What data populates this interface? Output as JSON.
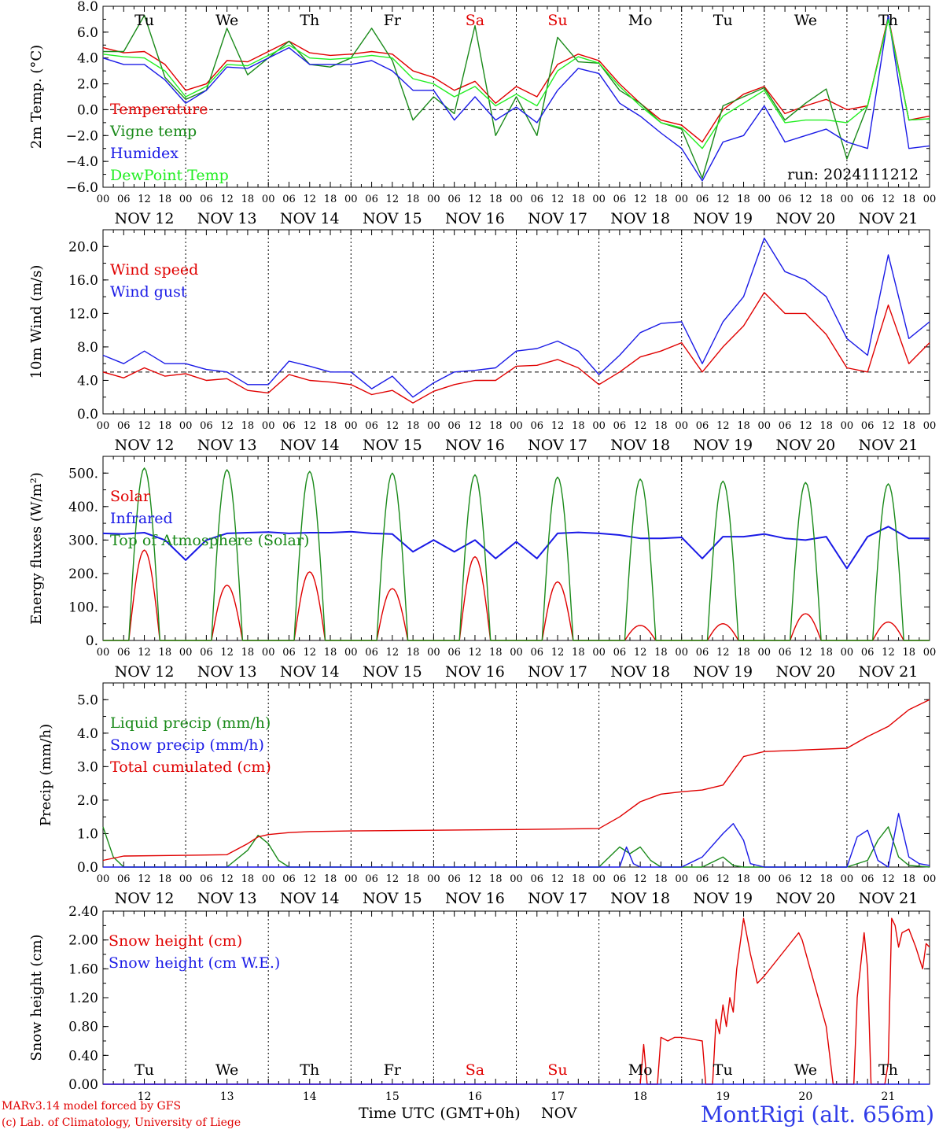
{
  "colors": {
    "red": "#e00000",
    "dark_green": "#1a8a1a",
    "blue": "#1a1ae6",
    "light_green": "#22ee22",
    "grid": "#000000",
    "station": "#2f3be8"
  },
  "days": [
    "NOV 12",
    "NOV 13",
    "NOV 14",
    "NOV 15",
    "NOV 16",
    "NOV 17",
    "NOV 18",
    "NOV 19",
    "NOV 20",
    "NOV 21"
  ],
  "weekdays": [
    "Tu",
    "We",
    "Th",
    "Fr",
    "Sa",
    "Su",
    "Mo",
    "Tu",
    "We",
    "Th"
  ],
  "weekend_color_indices": [
    4,
    5
  ],
  "hour_ticks": [
    "00",
    "06",
    "12",
    "18"
  ],
  "bottom_day_numbers": [
    "12",
    "13",
    "14",
    "15",
    "16",
    "17",
    "18",
    "19",
    "20",
    "21"
  ],
  "footer": {
    "model": "MARv3.14 model forced by GFS",
    "copyright": "(c) Lab. of Climatology, University of Liege",
    "xaxis_label": "Time UTC (GMT+0h)",
    "month": "NOV",
    "station": "MontRigi (alt. 656m)"
  },
  "chart_data": [
    {
      "type": "line",
      "title": "",
      "ylabel": "2m Temp. (°C)",
      "ylim": [
        -6,
        8
      ],
      "yticks": [
        "−6.0",
        "−4.0",
        "−2.0",
        "0.0",
        "2.0",
        "4.0",
        "6.0",
        "8.0"
      ],
      "reference_line": 0,
      "annotation": "run: 2024111212",
      "x_unit": "hours since NOV 12 00 UTC",
      "series": [
        {
          "name": "Temperature",
          "color": "#e00000",
          "x": [
            0,
            6,
            12,
            18,
            24,
            30,
            36,
            42,
            48,
            54,
            60,
            66,
            72,
            78,
            84,
            90,
            96,
            102,
            108,
            114,
            120,
            126,
            132,
            138,
            144,
            150,
            156,
            162,
            168,
            174,
            180,
            186,
            192,
            198,
            204,
            210,
            216,
            222,
            228,
            234,
            240
          ],
          "y": [
            4.8,
            4.4,
            4.5,
            3.5,
            1.5,
            2.0,
            3.8,
            3.7,
            4.5,
            5.3,
            4.4,
            4.2,
            4.3,
            4.5,
            4.3,
            3.0,
            2.5,
            1.5,
            2.2,
            0.5,
            1.8,
            1.0,
            3.5,
            4.3,
            3.8,
            2.0,
            0.5,
            -0.8,
            -1.2,
            -2.5,
            0.0,
            1.2,
            1.8,
            -0.3,
            0.3,
            0.8,
            0.0,
            0.3,
            7.2,
            -0.8,
            -0.5
          ]
        },
        {
          "name": "Vigne temp",
          "color": "#1a8a1a",
          "x": [
            0,
            6,
            12,
            18,
            24,
            30,
            36,
            42,
            48,
            54,
            60,
            66,
            72,
            78,
            84,
            90,
            96,
            102,
            108,
            114,
            120,
            126,
            132,
            138,
            144,
            150,
            156,
            162,
            168,
            174,
            180,
            186,
            192,
            198,
            204,
            210,
            216,
            222,
            228,
            234,
            240
          ],
          "y": [
            4.5,
            4.5,
            7.3,
            2.5,
            0.8,
            1.5,
            6.3,
            2.7,
            4.0,
            5.3,
            3.5,
            3.3,
            4.0,
            6.3,
            3.8,
            -0.8,
            1.0,
            -0.3,
            6.5,
            -2.0,
            1.0,
            -2.0,
            5.6,
            3.7,
            3.6,
            1.5,
            0.5,
            -1.0,
            -1.5,
            -5.3,
            0.3,
            1.0,
            1.7,
            -0.8,
            0.5,
            1.6,
            -3.8,
            0.3,
            7.0,
            -0.8,
            -0.7
          ]
        },
        {
          "name": "Humidex",
          "color": "#1a1ae6",
          "x": [
            0,
            6,
            12,
            18,
            24,
            30,
            36,
            42,
            48,
            54,
            60,
            66,
            72,
            78,
            84,
            90,
            96,
            102,
            108,
            114,
            120,
            126,
            132,
            138,
            144,
            150,
            156,
            162,
            168,
            174,
            180,
            186,
            192,
            198,
            204,
            210,
            216,
            222,
            228,
            234,
            240
          ],
          "y": [
            4.0,
            3.5,
            3.5,
            2.3,
            0.5,
            1.5,
            3.3,
            3.2,
            4.0,
            4.8,
            3.5,
            3.5,
            3.5,
            3.8,
            3.0,
            1.5,
            1.5,
            -0.8,
            1.0,
            -0.8,
            0.2,
            -1.0,
            1.5,
            3.2,
            2.8,
            0.5,
            -0.5,
            -1.8,
            -3.0,
            -5.5,
            -2.5,
            -2.0,
            0.3,
            -2.5,
            -2.0,
            -1.5,
            -2.5,
            -3.0,
            7.3,
            -3.0,
            -2.8
          ]
        },
        {
          "name": "DewPoint Temp",
          "color": "#22ee22",
          "x": [
            0,
            6,
            12,
            18,
            24,
            30,
            36,
            42,
            48,
            54,
            60,
            66,
            72,
            78,
            84,
            90,
            96,
            102,
            108,
            114,
            120,
            126,
            132,
            138,
            144,
            150,
            156,
            162,
            168,
            174,
            180,
            186,
            192,
            198,
            204,
            210,
            216,
            222,
            228,
            234,
            240
          ],
          "y": [
            4.3,
            4.1,
            4.0,
            3.0,
            1.0,
            1.8,
            3.5,
            3.4,
            4.2,
            5.0,
            4.0,
            3.9,
            4.0,
            4.2,
            4.0,
            2.4,
            2.0,
            1.0,
            1.8,
            0.3,
            1.2,
            0.3,
            3.0,
            4.1,
            3.6,
            1.8,
            0.3,
            -1.0,
            -1.4,
            -3.0,
            -0.5,
            0.5,
            1.5,
            -1.0,
            -0.8,
            -0.8,
            -1.0,
            0.3,
            7.0,
            -0.8,
            -0.7
          ]
        }
      ]
    },
    {
      "type": "line",
      "title": "",
      "ylabel": "10m Wind (m/s)",
      "ylim": [
        0,
        22
      ],
      "yticks": [
        "0.0",
        "4.0",
        "8.0",
        "12.0",
        "16.0",
        "20.0"
      ],
      "reference_line": 5,
      "series": [
        {
          "name": "Wind speed",
          "color": "#e00000",
          "x": [
            0,
            6,
            12,
            18,
            24,
            30,
            36,
            42,
            48,
            54,
            60,
            66,
            72,
            78,
            84,
            90,
            96,
            102,
            108,
            114,
            120,
            126,
            132,
            138,
            144,
            150,
            156,
            162,
            168,
            174,
            180,
            186,
            192,
            198,
            204,
            210,
            216,
            222,
            228,
            234,
            240
          ],
          "y": [
            5.0,
            4.3,
            5.5,
            4.5,
            4.8,
            4.0,
            4.2,
            2.8,
            2.5,
            4.7,
            4.0,
            3.8,
            3.5,
            2.3,
            2.8,
            1.3,
            2.7,
            3.5,
            4.0,
            4.0,
            5.7,
            5.8,
            6.5,
            5.5,
            3.5,
            5.0,
            6.8,
            7.5,
            8.5,
            5.0,
            8.0,
            10.5,
            14.5,
            12.0,
            12.0,
            9.5,
            5.5,
            5.0,
            13.0,
            6.0,
            8.5
          ]
        },
        {
          "name": "Wind gust",
          "color": "#1a1ae6",
          "x": [
            0,
            6,
            12,
            18,
            24,
            30,
            36,
            42,
            48,
            54,
            60,
            66,
            72,
            78,
            84,
            90,
            96,
            102,
            108,
            114,
            120,
            126,
            132,
            138,
            144,
            150,
            156,
            162,
            168,
            174,
            180,
            186,
            192,
            198,
            204,
            210,
            216,
            222,
            228,
            234,
            240
          ],
          "y": [
            7.0,
            6.0,
            7.5,
            6.0,
            6.0,
            5.3,
            5.0,
            3.5,
            3.5,
            6.3,
            5.7,
            5.0,
            5.0,
            3.0,
            4.5,
            2.0,
            3.7,
            5.0,
            5.2,
            5.5,
            7.5,
            7.8,
            8.7,
            7.5,
            4.7,
            7.0,
            9.7,
            10.8,
            11.0,
            6.0,
            11.0,
            14.0,
            21.0,
            17.0,
            16.0,
            14.0,
            9.0,
            7.0,
            19.0,
            9.0,
            11.0
          ]
        }
      ]
    },
    {
      "type": "line",
      "title": "",
      "ylabel": "Energy fluxes (W/m²)",
      "ylim": [
        0,
        550
      ],
      "yticks": [
        "0.",
        "100.",
        "200.",
        "300.",
        "400.",
        "500."
      ],
      "series": [
        {
          "name": "Solar",
          "color": "#e00000",
          "kind": "daily_peaks",
          "peak_hour": 12,
          "half_width_h": 4.5,
          "daily_peaks": [
            270,
            165,
            205,
            155,
            250,
            175,
            45,
            50,
            80,
            55
          ]
        },
        {
          "name": "Infrared",
          "color": "#1a1ae6",
          "x": [
            0,
            6,
            12,
            18,
            24,
            30,
            36,
            42,
            48,
            54,
            60,
            66,
            72,
            78,
            84,
            90,
            96,
            102,
            108,
            114,
            120,
            126,
            132,
            138,
            144,
            150,
            156,
            162,
            168,
            174,
            180,
            186,
            192,
            198,
            204,
            210,
            216,
            222,
            228,
            234,
            240
          ],
          "y": [
            320,
            318,
            322,
            300,
            240,
            300,
            320,
            322,
            324,
            320,
            322,
            322,
            325,
            320,
            318,
            265,
            300,
            265,
            300,
            245,
            295,
            245,
            320,
            323,
            320,
            315,
            305,
            305,
            308,
            245,
            310,
            310,
            318,
            305,
            300,
            310,
            215,
            310,
            340,
            305,
            305
          ]
        },
        {
          "name": "Top of Atmosphere (Solar)",
          "color": "#1a8a1a",
          "kind": "daily_peaks",
          "peak_hour": 12,
          "half_width_h": 4.5,
          "daily_peaks": [
            515,
            510,
            505,
            500,
            495,
            488,
            482,
            476,
            472,
            468
          ]
        }
      ]
    },
    {
      "type": "line",
      "title": "",
      "ylabel": "Precip (mm/h)",
      "ylim": [
        0,
        5.5
      ],
      "yticks": [
        "0.0",
        "1.0",
        "2.0",
        "3.0",
        "4.0",
        "5.0"
      ],
      "series": [
        {
          "name": "Liquid precip (mm/h)",
          "color": "#1a8a1a",
          "x": [
            0,
            3,
            6,
            12,
            24,
            36,
            42,
            45,
            48,
            51,
            54,
            60,
            96,
            144,
            150,
            153,
            156,
            159,
            162,
            168,
            174,
            180,
            183,
            186,
            192,
            204,
            216,
            222,
            225,
            228,
            231,
            234,
            240
          ],
          "y": [
            1.2,
            0.3,
            0.0,
            0.0,
            0.0,
            0.0,
            0.5,
            0.95,
            0.7,
            0.2,
            0.0,
            0.0,
            0.0,
            0.0,
            0.6,
            0.4,
            0.6,
            0.2,
            0.0,
            0.0,
            0.0,
            0.3,
            0.05,
            0.0,
            0.0,
            0.0,
            0.0,
            0.2,
            0.8,
            1.2,
            0.3,
            0.05,
            0.0
          ]
        },
        {
          "name": "Snow precip (mm/h)",
          "color": "#1a1ae6",
          "x": [
            0,
            24,
            36,
            48,
            96,
            144,
            150,
            152,
            154,
            156,
            162,
            168,
            174,
            180,
            183,
            186,
            188,
            192,
            204,
            216,
            219,
            222,
            225,
            228,
            231,
            234,
            237,
            240
          ],
          "y": [
            0.0,
            0.0,
            0.0,
            0.0,
            0.0,
            0.0,
            0.0,
            0.6,
            0.1,
            0.0,
            0.0,
            0.0,
            0.3,
            1.0,
            1.3,
            0.8,
            0.1,
            0.0,
            0.0,
            0.0,
            0.9,
            1.1,
            0.2,
            0.0,
            1.6,
            0.3,
            0.1,
            0.05
          ]
        },
        {
          "name": "Total cumulated (cm)",
          "color": "#e00000",
          "x": [
            0,
            6,
            24,
            36,
            42,
            45,
            48,
            54,
            60,
            72,
            96,
            120,
            144,
            150,
            156,
            162,
            168,
            174,
            180,
            186,
            192,
            204,
            216,
            222,
            228,
            234,
            240
          ],
          "y": [
            0.2,
            0.33,
            0.35,
            0.37,
            0.7,
            0.9,
            0.97,
            1.03,
            1.06,
            1.08,
            1.1,
            1.12,
            1.15,
            1.5,
            1.95,
            2.18,
            2.25,
            2.3,
            2.45,
            3.3,
            3.45,
            3.5,
            3.55,
            3.9,
            4.2,
            4.7,
            5.0
          ]
        }
      ]
    },
    {
      "type": "line",
      "title": "",
      "ylabel": "Snow height (cm)",
      "ylim": [
        0,
        2.4
      ],
      "yticks": [
        "0.00",
        "0.40",
        "0.80",
        "1.20",
        "1.60",
        "2.00",
        "2.40"
      ],
      "series": [
        {
          "name": "Snow height (cm)",
          "color": "#e00000",
          "x": [
            0,
            156,
            157,
            158,
            159,
            160,
            161,
            162,
            164,
            166,
            168,
            174,
            175,
            176,
            177,
            178,
            179,
            180,
            181,
            182,
            183,
            184,
            186,
            188,
            190,
            192,
            202,
            203,
            210,
            212,
            214,
            216,
            218,
            219,
            221,
            222,
            223,
            227,
            228,
            229,
            230,
            231,
            232,
            234,
            236,
            238,
            239,
            240
          ],
          "y": [
            0.0,
            0.0,
            0.55,
            0.0,
            0.0,
            0.0,
            0.0,
            0.65,
            0.6,
            0.65,
            0.65,
            0.6,
            0.0,
            0.0,
            0.0,
            0.9,
            0.7,
            1.1,
            0.8,
            1.2,
            1.0,
            1.6,
            2.3,
            1.8,
            1.4,
            1.5,
            2.1,
            2.0,
            0.8,
            0.0,
            0.0,
            0.0,
            0.0,
            1.2,
            2.1,
            1.6,
            0.0,
            0.0,
            0.3,
            2.3,
            2.2,
            1.9,
            2.1,
            2.15,
            1.9,
            1.6,
            1.95,
            1.9
          ]
        },
        {
          "name": "Snow height (cm W.E.)",
          "color": "#1a1ae6",
          "x": [
            0,
            240
          ],
          "y": [
            0.0,
            0.0
          ]
        }
      ]
    }
  ]
}
